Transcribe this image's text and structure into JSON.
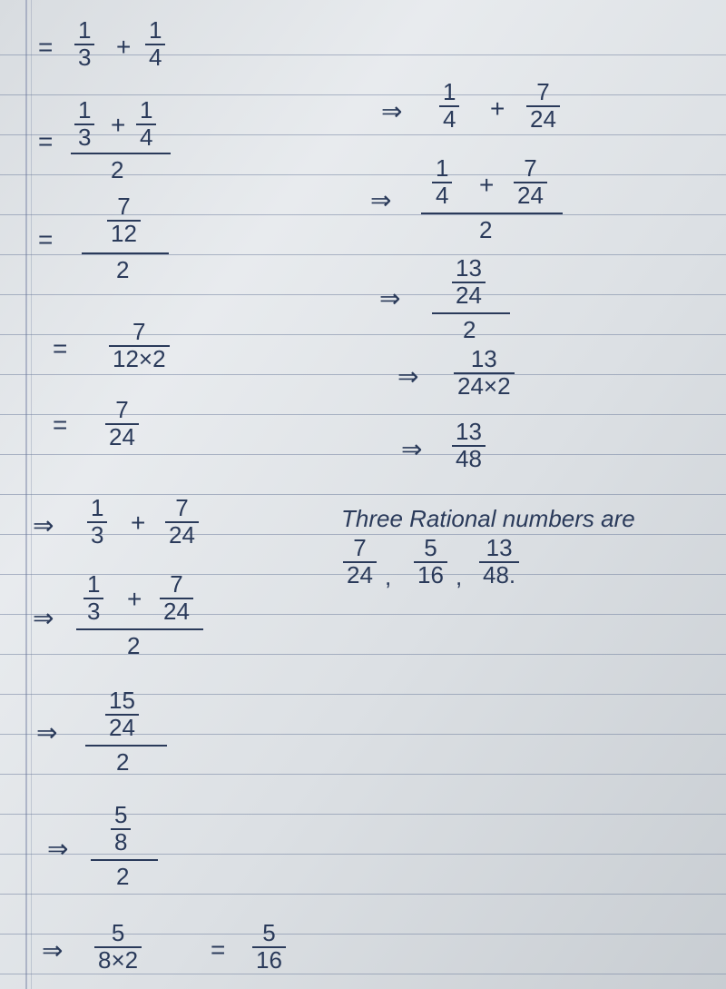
{
  "lines": {
    "count": 24,
    "spacing": 44,
    "start": 60
  },
  "symbols": {
    "equals": "=",
    "arrow": "⇒",
    "plus": "+",
    "times": "×"
  },
  "leftCol": {
    "step1": {
      "sym": "=",
      "f1": {
        "n": "1",
        "d": "3"
      },
      "f2": {
        "n": "1",
        "d": "4"
      }
    },
    "step2": {
      "sym": "=",
      "f1": {
        "n": "1",
        "d": "3"
      },
      "f2": {
        "n": "1",
        "d": "4"
      },
      "under": "2"
    },
    "step3": {
      "sym": "=",
      "top": {
        "n": "7",
        "d": "12"
      },
      "under": "2"
    },
    "step4": {
      "sym": "=",
      "f": {
        "n": "7",
        "d": "12×2"
      }
    },
    "step5": {
      "sym": "=",
      "f": {
        "n": "7",
        "d": "24"
      }
    },
    "step6": {
      "sym": "⇒",
      "f1": {
        "n": "1",
        "d": "3"
      },
      "f2": {
        "n": "7",
        "d": "24"
      }
    },
    "step7": {
      "sym": "⇒",
      "f1": {
        "n": "1",
        "d": "3"
      },
      "f2": {
        "n": "7",
        "d": "24"
      },
      "under": "2"
    },
    "step8": {
      "sym": "⇒",
      "top": {
        "n": "15",
        "d": "24"
      },
      "under": "2"
    },
    "step9": {
      "sym": "⇒",
      "top": {
        "n": "5",
        "d": "8"
      },
      "under": "2"
    },
    "step10": {
      "sym": "⇒",
      "f": {
        "n": "5",
        "d": "8×2"
      },
      "eq": "=",
      "r": {
        "n": "5",
        "d": "16"
      }
    }
  },
  "rightCol": {
    "step1": {
      "sym": "⇒",
      "f1": {
        "n": "1",
        "d": "4"
      },
      "f2": {
        "n": "7",
        "d": "24"
      }
    },
    "step2": {
      "sym": "⇒",
      "f1": {
        "n": "1",
        "d": "4"
      },
      "f2": {
        "n": "7",
        "d": "24"
      },
      "under": "2"
    },
    "step3": {
      "sym": "⇒",
      "top": {
        "n": "13",
        "d": "24"
      },
      "under": "2"
    },
    "step4": {
      "sym": "⇒",
      "f": {
        "n": "13",
        "d": "24×2"
      }
    },
    "step5": {
      "sym": "⇒",
      "f": {
        "n": "13",
        "d": "48"
      }
    }
  },
  "conclusion": {
    "text": "Three Rational numbers are",
    "answers": [
      {
        "n": "7",
        "d": "24"
      },
      {
        "n": "5",
        "d": "16"
      },
      {
        "n": "13",
        "d": "48."
      }
    ]
  },
  "colors": {
    "ink": "#2a3a5a",
    "ruled": "#6a7a9a",
    "margin": "#8a95b0"
  }
}
